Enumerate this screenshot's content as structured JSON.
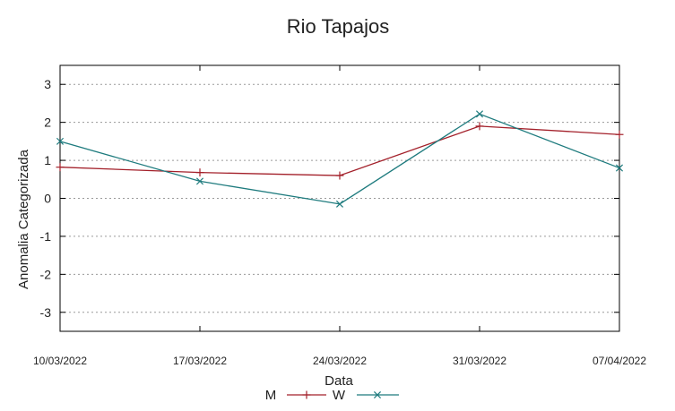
{
  "chart_data": {
    "type": "line",
    "title": "Rio Tapajos",
    "xlabel": "Data",
    "ylabel": "Anomalia Categorizada",
    "categories": [
      "10/03/2022",
      "17/03/2022",
      "24/03/2022",
      "31/03/2022",
      "07/04/2022"
    ],
    "yticks": [
      "3",
      "2",
      "1",
      "0",
      "-1",
      "-2",
      "-3"
    ],
    "ylim": [
      -3.5,
      3.5
    ],
    "grid": true,
    "legend_position": "bottom",
    "series": [
      {
        "name": "M",
        "values": [
          0.82,
          0.68,
          0.6,
          1.9,
          1.68
        ],
        "color": "#a3202a",
        "marker": "plus"
      },
      {
        "name": "W",
        "values": [
          1.5,
          0.45,
          -0.15,
          2.22,
          0.8
        ],
        "color": "#1e7b7e",
        "marker": "cross"
      }
    ]
  }
}
